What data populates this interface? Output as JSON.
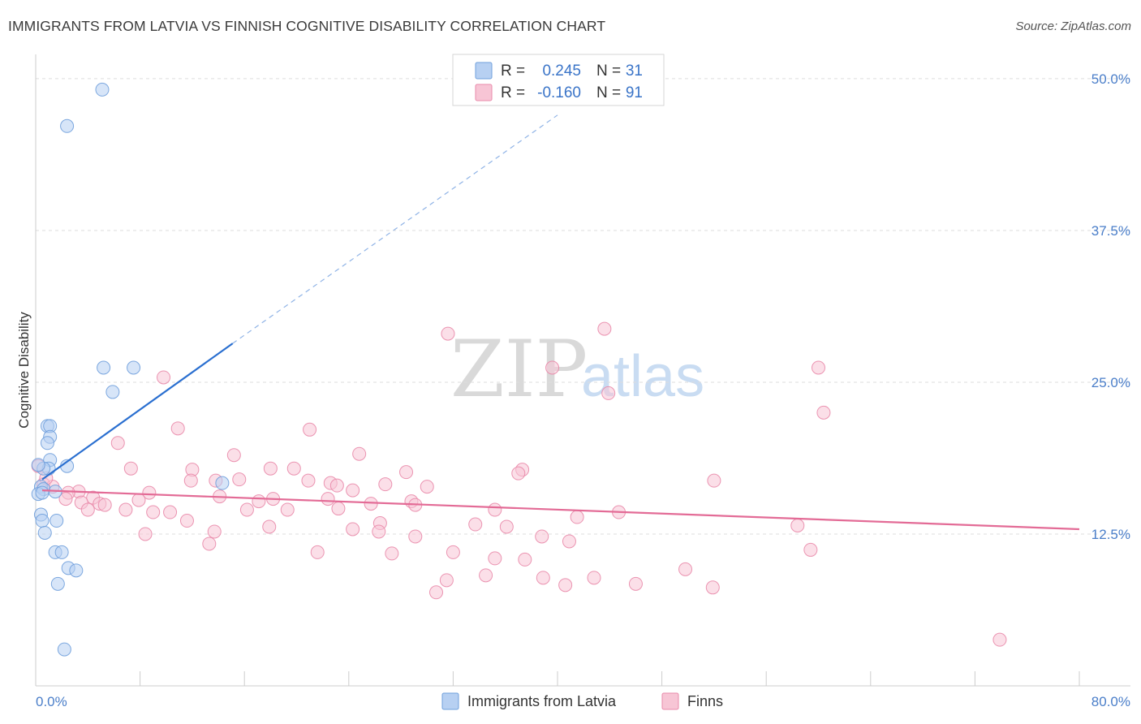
{
  "header": {
    "title": "IMMIGRANTS FROM LATVIA VS FINNISH COGNITIVE DISABILITY CORRELATION CHART",
    "source": "Source: ZipAtlas.com"
  },
  "watermark": {
    "zip": "ZIP",
    "atlas": "atlas"
  },
  "colors": {
    "blue_fill": "#b7d0f2",
    "blue_stroke": "#6f9fdc",
    "blue_line": "#2a6fd0",
    "pink_fill": "#f7c5d5",
    "pink_stroke": "#e98aaa",
    "pink_line": "#e36b96",
    "tick_text": "#4a7ec9",
    "grid": "#dddddd"
  },
  "legend": {
    "rows": [
      {
        "r_label": "R =",
        "r_value": "0.245",
        "n_label": "N =",
        "n_value": "31"
      },
      {
        "r_label": "R =",
        "r_value": "-0.160",
        "n_label": "N =",
        "n_value": "91"
      }
    ]
  },
  "chart_data": {
    "type": "scatter",
    "title": "IMMIGRANTS FROM LATVIA VS FINNISH COGNITIVE DISABILITY CORRELATION CHART",
    "xlabel": "",
    "ylabel": "Cognitive Disability",
    "xlim": [
      0,
      80
    ],
    "ylim": [
      0,
      52
    ],
    "x_tick_labels": [
      "0.0%",
      "80.0%"
    ],
    "y_ticks": [
      12.5,
      25.0,
      37.5,
      50.0
    ],
    "y_tick_labels": [
      "12.5%",
      "25.0%",
      "37.5%",
      "50.0%"
    ],
    "grid": true,
    "legend_position": "top-center",
    "series": [
      {
        "name": "Immigrants from Latvia",
        "r": 0.245,
        "n": 31,
        "trend": {
          "x0": 0.5,
          "y0": 17.0,
          "x1": 15.1,
          "y1": 28.2,
          "dashed_to_x": 40.0,
          "dashed_to_y": 47.0
        },
        "points": [
          [
            5.1,
            49.1
          ],
          [
            2.4,
            46.1
          ],
          [
            5.2,
            26.2
          ],
          [
            7.5,
            26.2
          ],
          [
            5.9,
            24.2
          ],
          [
            0.9,
            21.4
          ],
          [
            1.1,
            21.4
          ],
          [
            1.1,
            20.5
          ],
          [
            0.9,
            20.0
          ],
          [
            1.1,
            18.6
          ],
          [
            1.0,
            17.9
          ],
          [
            2.4,
            18.1
          ],
          [
            0.6,
            17.9
          ],
          [
            0.2,
            18.2
          ],
          [
            0.4,
            16.4
          ],
          [
            0.6,
            16.2
          ],
          [
            0.2,
            15.8
          ],
          [
            0.5,
            15.9
          ],
          [
            1.5,
            16.0
          ],
          [
            14.3,
            16.7
          ],
          [
            0.4,
            14.1
          ],
          [
            0.5,
            13.6
          ],
          [
            1.6,
            13.6
          ],
          [
            0.7,
            12.6
          ],
          [
            1.5,
            11.0
          ],
          [
            2.0,
            11.0
          ],
          [
            2.5,
            9.7
          ],
          [
            3.1,
            9.5
          ],
          [
            1.7,
            8.4
          ],
          [
            2.2,
            3.0
          ]
        ]
      },
      {
        "name": "Finns",
        "r": -0.16,
        "n": 91,
        "trend": {
          "x0": 0.5,
          "y0": 16.1,
          "x1": 80.0,
          "y1": 12.9
        },
        "points": [
          [
            31.6,
            29.0
          ],
          [
            43.6,
            29.4
          ],
          [
            60.0,
            26.2
          ],
          [
            39.6,
            26.2
          ],
          [
            9.8,
            25.4
          ],
          [
            43.9,
            24.1
          ],
          [
            60.4,
            22.5
          ],
          [
            10.9,
            21.2
          ],
          [
            21.0,
            21.1
          ],
          [
            6.3,
            20.0
          ],
          [
            24.8,
            19.1
          ],
          [
            15.2,
            19.0
          ],
          [
            12.0,
            17.8
          ],
          [
            7.3,
            17.9
          ],
          [
            18.0,
            17.9
          ],
          [
            19.8,
            17.9
          ],
          [
            37.3,
            17.8
          ],
          [
            28.4,
            17.6
          ],
          [
            37.0,
            17.5
          ],
          [
            52.0,
            16.9
          ],
          [
            11.9,
            16.9
          ],
          [
            13.8,
            16.9
          ],
          [
            15.6,
            17.0
          ],
          [
            20.9,
            16.9
          ],
          [
            22.6,
            16.7
          ],
          [
            23.1,
            16.5
          ],
          [
            26.8,
            16.6
          ],
          [
            30.0,
            16.4
          ],
          [
            24.3,
            16.1
          ],
          [
            3.3,
            16.0
          ],
          [
            2.5,
            15.9
          ],
          [
            8.7,
            15.9
          ],
          [
            0.6,
            16.6
          ],
          [
            1.3,
            16.4
          ],
          [
            0.8,
            17.1
          ],
          [
            0.2,
            18.1
          ],
          [
            2.3,
            15.4
          ],
          [
            4.4,
            15.5
          ],
          [
            7.9,
            15.3
          ],
          [
            14.1,
            15.6
          ],
          [
            17.1,
            15.2
          ],
          [
            22.4,
            15.4
          ],
          [
            28.8,
            15.2
          ],
          [
            3.5,
            15.1
          ],
          [
            4.9,
            15.0
          ],
          [
            5.3,
            14.9
          ],
          [
            18.2,
            15.4
          ],
          [
            25.7,
            15.0
          ],
          [
            29.1,
            14.9
          ],
          [
            23.2,
            14.6
          ],
          [
            4.0,
            14.5
          ],
          [
            6.9,
            14.5
          ],
          [
            16.2,
            14.5
          ],
          [
            19.3,
            14.5
          ],
          [
            35.2,
            14.5
          ],
          [
            44.7,
            14.3
          ],
          [
            9.0,
            14.3
          ],
          [
            10.3,
            14.3
          ],
          [
            41.5,
            13.9
          ],
          [
            11.6,
            13.6
          ],
          [
            26.4,
            13.4
          ],
          [
            33.7,
            13.3
          ],
          [
            36.1,
            13.1
          ],
          [
            58.4,
            13.2
          ],
          [
            17.9,
            13.1
          ],
          [
            24.3,
            12.9
          ],
          [
            13.7,
            12.7
          ],
          [
            26.3,
            12.7
          ],
          [
            8.4,
            12.5
          ],
          [
            29.1,
            12.3
          ],
          [
            38.8,
            12.3
          ],
          [
            40.9,
            11.9
          ],
          [
            13.3,
            11.7
          ],
          [
            59.4,
            11.2
          ],
          [
            21.6,
            11.0
          ],
          [
            32.0,
            11.0
          ],
          [
            27.3,
            10.9
          ],
          [
            35.2,
            10.5
          ],
          [
            37.5,
            10.4
          ],
          [
            49.8,
            9.6
          ],
          [
            34.5,
            9.1
          ],
          [
            42.8,
            8.9
          ],
          [
            31.5,
            8.7
          ],
          [
            38.9,
            8.9
          ],
          [
            40.6,
            8.3
          ],
          [
            46.0,
            8.4
          ],
          [
            51.9,
            8.1
          ],
          [
            30.7,
            7.7
          ],
          [
            73.9,
            3.8
          ]
        ]
      }
    ]
  },
  "bottom_legend": {
    "items": [
      {
        "label": "Immigrants from Latvia"
      },
      {
        "label": "Finns"
      }
    ]
  }
}
